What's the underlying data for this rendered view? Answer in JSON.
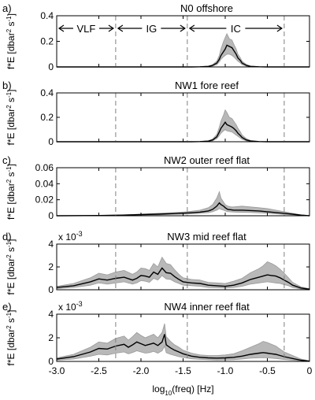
{
  "chart_data": {
    "type": "line",
    "xlabel_main": "log",
    "xlabel_sub": "10",
    "xlabel_rest": "(freq) [Hz]",
    "xlim": [
      -3.0,
      0
    ],
    "xticks": [
      "-3.0",
      "-2.5",
      "-2.0",
      "-1.5",
      "-1.0",
      "-0.5",
      "0"
    ],
    "xtick_values": [
      -3.0,
      -2.5,
      -2.0,
      -1.5,
      -1.0,
      -0.5,
      0
    ],
    "band_boundaries": [
      -2.3,
      -1.45,
      -0.3
    ],
    "bands": [
      {
        "label": "VLF",
        "from": -3.0,
        "to": -2.3
      },
      {
        "label": "IG",
        "from": -2.3,
        "to": -1.45
      },
      {
        "label": "IC",
        "from": -1.45,
        "to": -0.3
      }
    ],
    "ylabel_main": "f*E [dbar",
    "ylabel_sup": "2",
    "ylabel_rest": " s",
    "ylabel_sup2": "-1",
    "ylabel_end": "]",
    "panels": [
      {
        "letter": "a)",
        "title": "N0 offshore",
        "ylim": [
          0,
          0.4
        ],
        "yticks": [
          "0",
          "0.2",
          "0.4"
        ],
        "ytick_values": [
          0,
          0.2,
          0.4
        ],
        "multiplier": "",
        "series": {
          "x": [
            -3.0,
            -2.5,
            -2.0,
            -1.6,
            -1.4,
            -1.3,
            -1.2,
            -1.15,
            -1.1,
            -1.07,
            -1.05,
            -1.02,
            -1.0,
            -0.98,
            -0.95,
            -0.92,
            -0.9,
            -0.87,
            -0.85,
            -0.82,
            -0.8,
            -0.75,
            -0.7,
            -0.6,
            -0.5,
            -0.3,
            0
          ],
          "mean": [
            0,
            0,
            0,
            0,
            0,
            0.001,
            0.004,
            0.012,
            0.03,
            0.06,
            0.09,
            0.12,
            0.14,
            0.17,
            0.16,
            0.15,
            0.13,
            0.1,
            0.07,
            0.05,
            0.03,
            0.012,
            0.004,
            0.001,
            0,
            0,
            0
          ],
          "upper": [
            0,
            0,
            0,
            0,
            0,
            0.002,
            0.006,
            0.018,
            0.045,
            0.09,
            0.14,
            0.2,
            0.23,
            0.26,
            0.22,
            0.21,
            0.18,
            0.14,
            0.1,
            0.07,
            0.045,
            0.02,
            0.007,
            0.002,
            0,
            0,
            0
          ],
          "lower": [
            0,
            0,
            0,
            0,
            0,
            0,
            0.002,
            0.007,
            0.018,
            0.04,
            0.06,
            0.08,
            0.09,
            0.1,
            0.1,
            0.09,
            0.08,
            0.06,
            0.045,
            0.03,
            0.018,
            0.006,
            0.002,
            0,
            0,
            0,
            0
          ]
        }
      },
      {
        "letter": "b)",
        "title": "NW1 fore reef",
        "ylim": [
          0,
          0.4
        ],
        "yticks": [
          "0",
          "0.2",
          "0.4"
        ],
        "ytick_values": [
          0,
          0.2,
          0.4
        ],
        "multiplier": "",
        "series": {
          "x": [
            -3.0,
            -2.5,
            -2.0,
            -1.6,
            -1.4,
            -1.3,
            -1.2,
            -1.15,
            -1.1,
            -1.07,
            -1.05,
            -1.02,
            -1.0,
            -0.98,
            -0.95,
            -0.92,
            -0.9,
            -0.87,
            -0.85,
            -0.82,
            -0.8,
            -0.75,
            -0.7,
            -0.6,
            -0.5,
            -0.3,
            0
          ],
          "mean": [
            0,
            0,
            0,
            0,
            0,
            0.001,
            0.005,
            0.015,
            0.04,
            0.08,
            0.11,
            0.14,
            0.16,
            0.14,
            0.13,
            0.12,
            0.11,
            0.09,
            0.07,
            0.05,
            0.035,
            0.015,
            0.006,
            0.001,
            0,
            0,
            0
          ],
          "upper": [
            0,
            0,
            0,
            0,
            0,
            0.002,
            0.008,
            0.022,
            0.06,
            0.12,
            0.17,
            0.22,
            0.26,
            0.24,
            0.2,
            0.19,
            0.17,
            0.14,
            0.11,
            0.08,
            0.055,
            0.025,
            0.01,
            0.002,
            0,
            0,
            0
          ],
          "lower": [
            0,
            0,
            0,
            0,
            0,
            0,
            0.003,
            0.008,
            0.025,
            0.05,
            0.07,
            0.09,
            0.1,
            0.09,
            0.085,
            0.08,
            0.07,
            0.055,
            0.045,
            0.03,
            0.02,
            0.008,
            0.003,
            0,
            0,
            0,
            0
          ]
        }
      },
      {
        "letter": "c)",
        "title": "NW2 outer reef flat",
        "ylim": [
          0,
          0.06
        ],
        "yticks": [
          "0",
          "0.02",
          "0.04",
          "0.06"
        ],
        "ytick_values": [
          0,
          0.02,
          0.04,
          0.06
        ],
        "multiplier": "",
        "series": {
          "x": [
            -3.0,
            -2.5,
            -2.2,
            -2.0,
            -1.8,
            -1.6,
            -1.45,
            -1.3,
            -1.2,
            -1.15,
            -1.1,
            -1.07,
            -1.05,
            -1.02,
            -1.0,
            -0.97,
            -0.93,
            -0.9,
            -0.8,
            -0.7,
            -0.6,
            -0.5,
            -0.4,
            -0.3,
            -0.2,
            -0.1,
            0
          ],
          "mean": [
            0,
            0.0003,
            0.0008,
            0.0015,
            0.002,
            0.0028,
            0.0035,
            0.0045,
            0.006,
            0.008,
            0.012,
            0.016,
            0.014,
            0.012,
            0.01,
            0.008,
            0.0075,
            0.007,
            0.007,
            0.0065,
            0.006,
            0.005,
            0.004,
            0.003,
            0.002,
            0.0008,
            0
          ],
          "upper": [
            0,
            0.0005,
            0.0012,
            0.002,
            0.003,
            0.004,
            0.005,
            0.007,
            0.01,
            0.014,
            0.022,
            0.03,
            0.022,
            0.017,
            0.014,
            0.012,
            0.011,
            0.011,
            0.012,
            0.011,
            0.01,
            0.009,
            0.007,
            0.005,
            0.003,
            0.0012,
            0
          ],
          "lower": [
            0,
            0.0001,
            0.0004,
            0.0009,
            0.0012,
            0.0018,
            0.0022,
            0.003,
            0.0038,
            0.005,
            0.007,
            0.009,
            0.008,
            0.007,
            0.006,
            0.005,
            0.0048,
            0.0045,
            0.0042,
            0.004,
            0.0035,
            0.003,
            0.0024,
            0.0017,
            0.0011,
            0.0004,
            0
          ]
        }
      },
      {
        "letter": "d)",
        "title": "NW3 mid reef flat",
        "ylim": [
          0,
          4
        ],
        "yticks": [
          "0",
          "2",
          "4"
        ],
        "ytick_values": [
          0,
          2,
          4
        ],
        "multiplier": "x 10",
        "multiplier_exp": "-3",
        "series": {
          "x": [
            -3.0,
            -2.8,
            -2.6,
            -2.5,
            -2.4,
            -2.3,
            -2.2,
            -2.1,
            -2.05,
            -2.0,
            -1.95,
            -1.9,
            -1.85,
            -1.8,
            -1.75,
            -1.7,
            -1.65,
            -1.6,
            -1.55,
            -1.5,
            -1.4,
            -1.3,
            -1.2,
            -1.1,
            -1.0,
            -0.9,
            -0.8,
            -0.7,
            -0.6,
            -0.55,
            -0.5,
            -0.45,
            -0.4,
            -0.35,
            -0.3,
            -0.25,
            -0.2,
            -0.1,
            0
          ],
          "mean": [
            0.2,
            0.35,
            0.7,
            0.95,
            0.85,
            1.0,
            1.1,
            0.85,
            1.0,
            1.25,
            1.2,
            1.1,
            1.55,
            1.35,
            1.9,
            1.5,
            1.45,
            1.15,
            0.9,
            0.7,
            0.6,
            0.55,
            0.4,
            0.35,
            0.3,
            0.4,
            0.6,
            0.9,
            1.1,
            1.2,
            1.3,
            1.25,
            1.2,
            1.05,
            0.85,
            0.65,
            0.4,
            0.15,
            0.05
          ],
          "upper": [
            0.3,
            0.55,
            1.05,
            1.45,
            1.3,
            1.55,
            1.7,
            1.35,
            1.55,
            1.9,
            1.85,
            1.7,
            2.3,
            2.0,
            2.85,
            2.3,
            2.2,
            1.75,
            1.35,
            1.05,
            0.9,
            0.85,
            0.65,
            0.6,
            0.55,
            0.75,
            1.0,
            1.5,
            1.85,
            2.1,
            2.45,
            2.3,
            2.1,
            1.8,
            1.45,
            1.05,
            0.65,
            0.25,
            0.1
          ],
          "lower": [
            0.1,
            0.2,
            0.4,
            0.6,
            0.5,
            0.6,
            0.7,
            0.5,
            0.6,
            0.8,
            0.75,
            0.65,
            1.0,
            0.85,
            1.25,
            0.95,
            0.9,
            0.7,
            0.55,
            0.4,
            0.35,
            0.3,
            0.2,
            0.18,
            0.15,
            0.2,
            0.3,
            0.5,
            0.6,
            0.65,
            0.7,
            0.65,
            0.6,
            0.55,
            0.45,
            0.35,
            0.2,
            0.07,
            0.02
          ]
        }
      },
      {
        "letter": "e)",
        "title": "NW4 inner reef flat",
        "ylim": [
          0,
          4
        ],
        "yticks": [
          "0",
          "2",
          "4"
        ],
        "ytick_values": [
          0,
          2,
          4
        ],
        "multiplier": "x 10",
        "multiplier_exp": "-3",
        "series": {
          "x": [
            -3.0,
            -2.8,
            -2.6,
            -2.5,
            -2.4,
            -2.3,
            -2.2,
            -2.15,
            -2.1,
            -2.05,
            -2.0,
            -1.95,
            -1.9,
            -1.85,
            -1.8,
            -1.75,
            -1.72,
            -1.7,
            -1.65,
            -1.6,
            -1.55,
            -1.5,
            -1.4,
            -1.3,
            -1.2,
            -1.1,
            -1.0,
            -0.9,
            -0.8,
            -0.7,
            -0.6,
            -0.55,
            -0.5,
            -0.45,
            -0.4,
            -0.35,
            -0.3,
            -0.2,
            -0.1,
            0
          ],
          "mean": [
            0.2,
            0.4,
            0.8,
            1.1,
            1.05,
            1.3,
            1.45,
            1.2,
            1.4,
            1.65,
            1.5,
            1.35,
            1.45,
            1.55,
            1.35,
            1.65,
            2.3,
            1.4,
            1.15,
            0.95,
            0.8,
            0.65,
            0.45,
            0.35,
            0.3,
            0.28,
            0.3,
            0.35,
            0.45,
            0.6,
            0.7,
            0.75,
            0.7,
            0.65,
            0.6,
            0.5,
            0.4,
            0.25,
            0.1,
            0.02
          ],
          "upper": [
            0.3,
            0.6,
            1.2,
            1.65,
            1.55,
            1.95,
            2.15,
            1.8,
            2.1,
            2.45,
            2.2,
            2.0,
            2.15,
            2.3,
            2.0,
            2.45,
            3.2,
            2.1,
            1.7,
            1.4,
            1.2,
            0.95,
            0.7,
            0.55,
            0.5,
            0.5,
            0.55,
            0.65,
            0.9,
            1.2,
            1.5,
            1.7,
            1.6,
            1.45,
            1.3,
            1.05,
            0.8,
            0.5,
            0.2,
            0.05
          ],
          "lower": [
            0.1,
            0.2,
            0.45,
            0.6,
            0.55,
            0.7,
            0.8,
            0.65,
            0.75,
            0.9,
            0.8,
            0.7,
            0.75,
            0.85,
            0.7,
            0.9,
            1.3,
            0.75,
            0.6,
            0.5,
            0.4,
            0.35,
            0.22,
            0.17,
            0.14,
            0.12,
            0.13,
            0.15,
            0.2,
            0.27,
            0.3,
            0.32,
            0.3,
            0.28,
            0.25,
            0.2,
            0.16,
            0.1,
            0.04,
            0.01
          ]
        }
      }
    ]
  }
}
